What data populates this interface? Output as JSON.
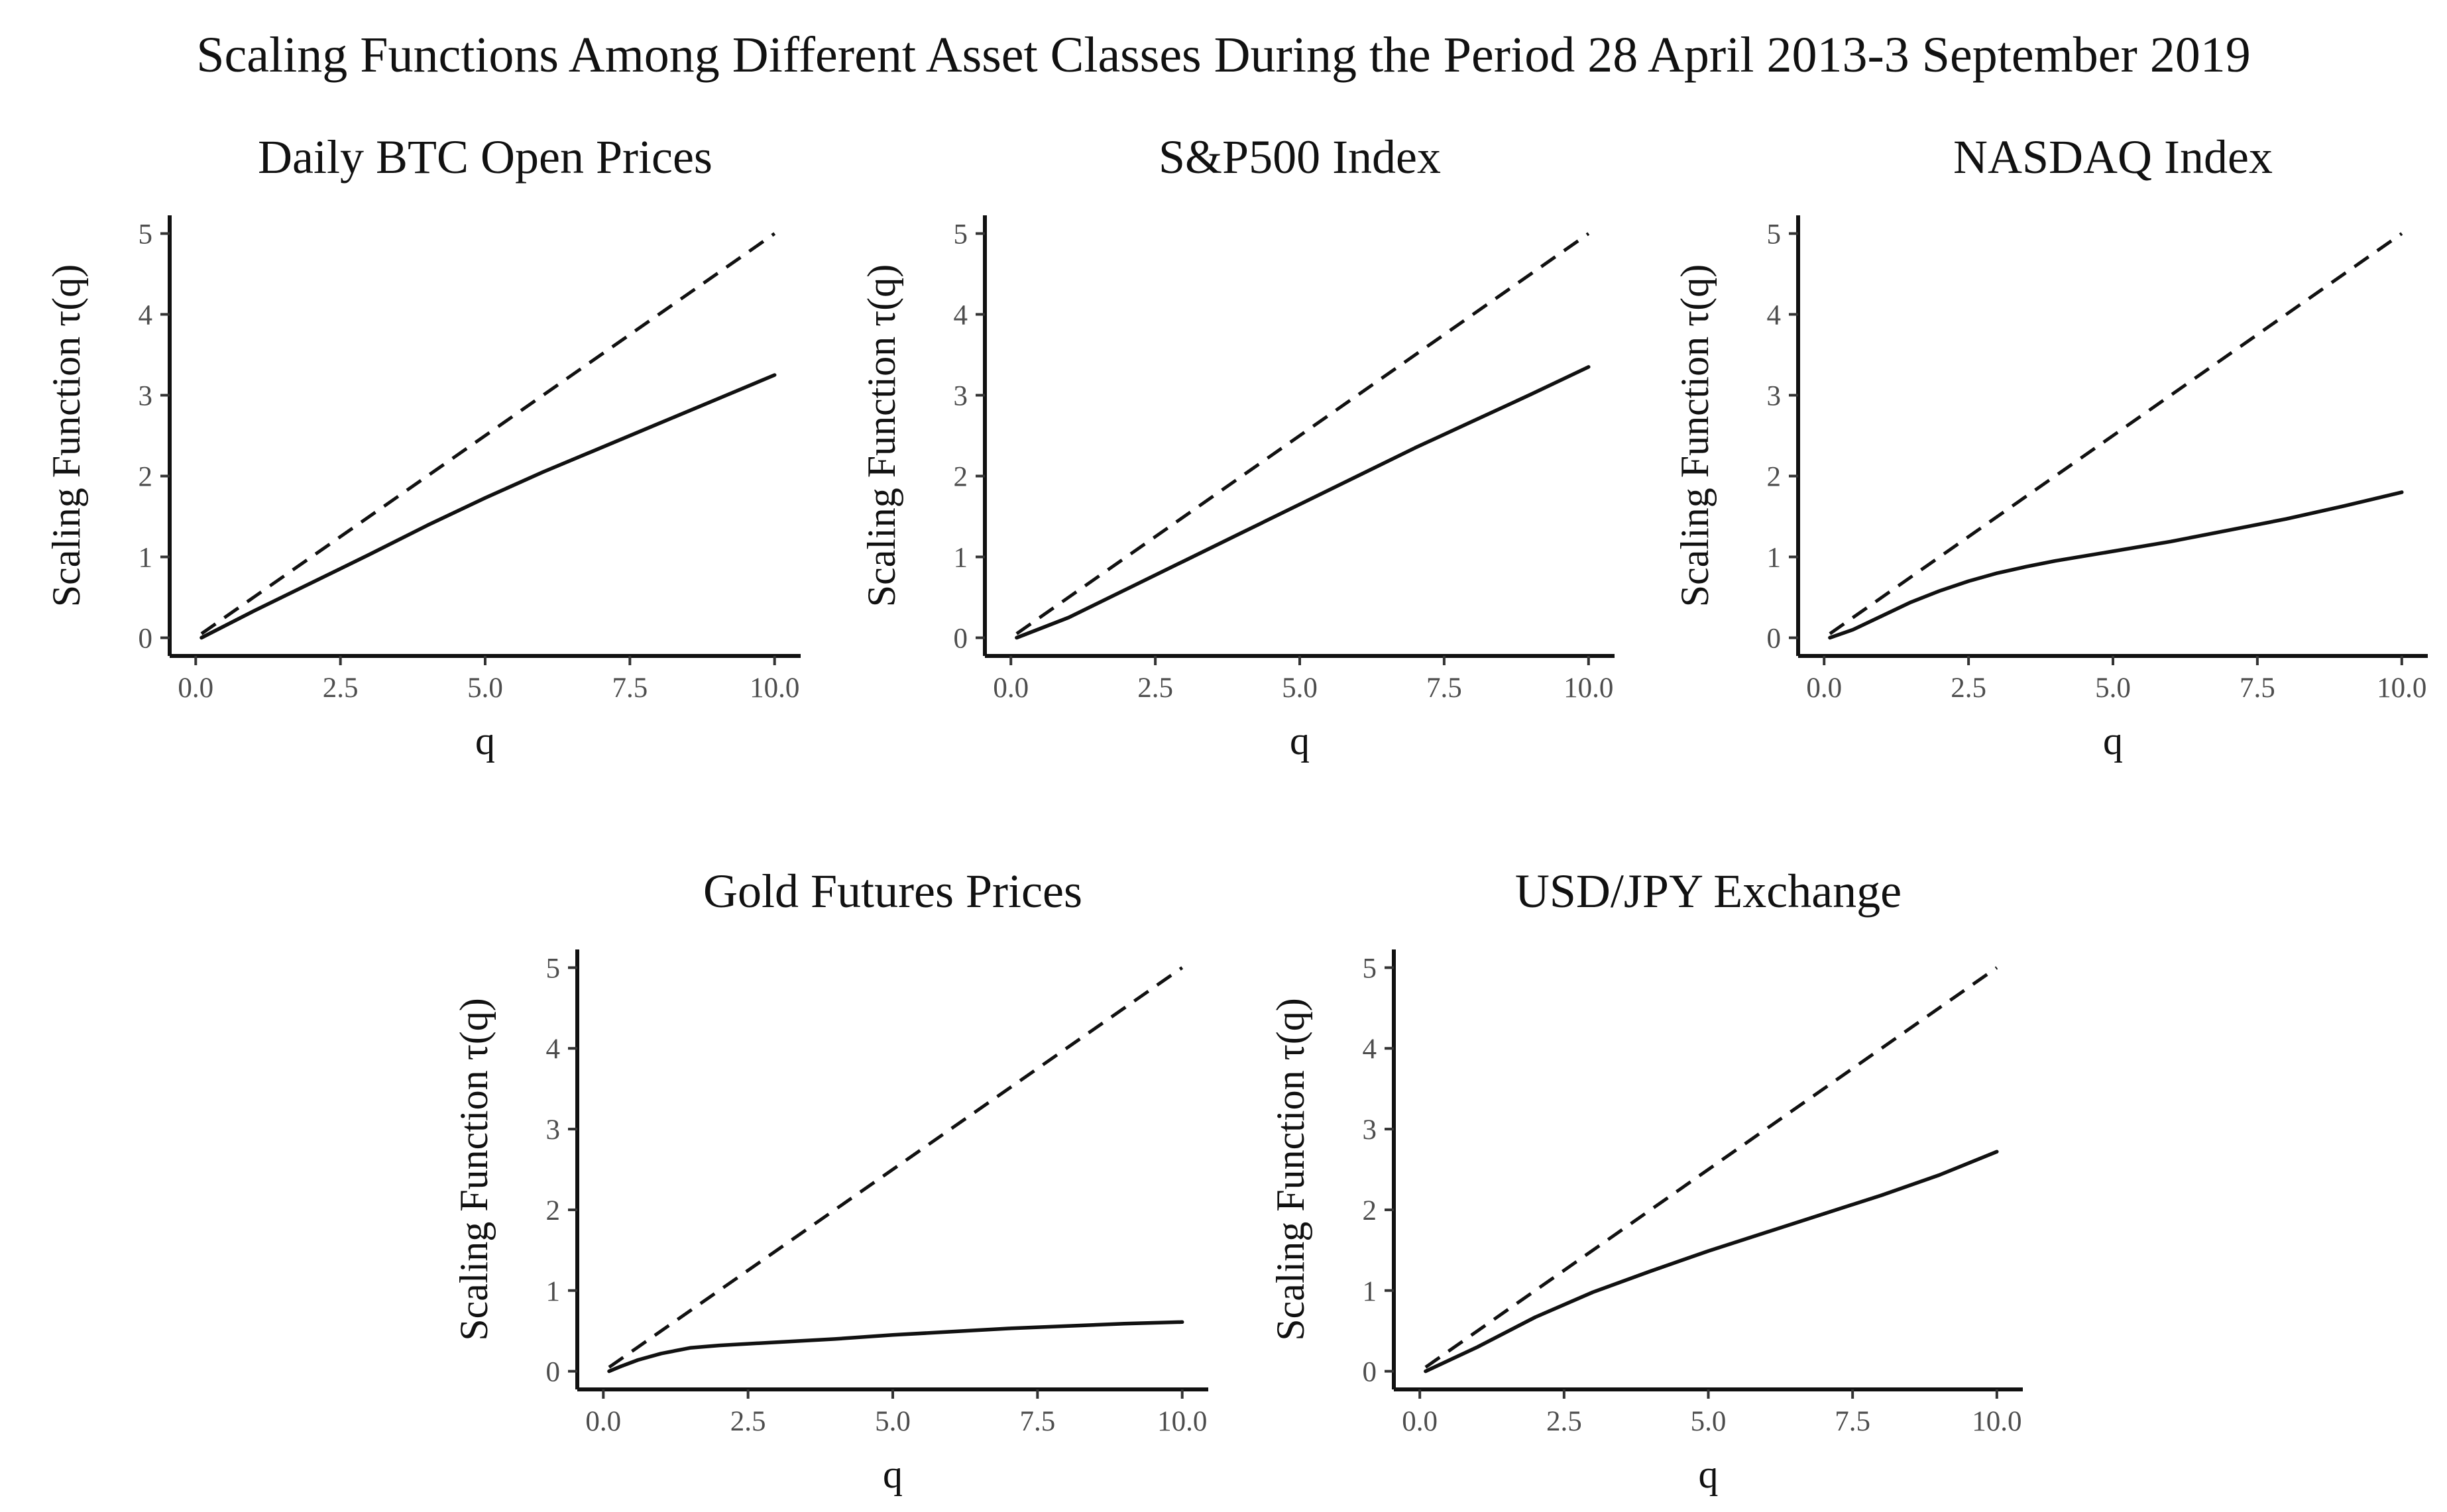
{
  "title": "Scaling Functions Among Different Asset Classes During the Period 28 April 2013-3 September 2019",
  "chart_data": [
    {
      "type": "line",
      "title": "Daily BTC Open Prices",
      "xlabel": "q",
      "ylabel": "Scaling Function τ(q)",
      "xlim": [
        0,
        10
      ],
      "ylim": [
        0,
        5
      ],
      "xticks": [
        "0.0",
        "2.5",
        "5.0",
        "7.5",
        "10.0"
      ],
      "yticks": [
        "0",
        "1",
        "2",
        "3",
        "4",
        "5"
      ],
      "grid": false,
      "series": [
        {
          "style": "solid",
          "x": [
            0.1,
            1,
            2,
            3,
            4,
            5,
            6,
            7,
            8,
            9,
            10
          ],
          "y": [
            0.0,
            0.33,
            0.68,
            1.03,
            1.39,
            1.73,
            2.05,
            2.35,
            2.65,
            2.95,
            3.25
          ]
        },
        {
          "style": "dashed",
          "x": [
            0.1,
            10
          ],
          "y": [
            0.05,
            5.0
          ]
        }
      ]
    },
    {
      "type": "line",
      "title": "S&P500 Index",
      "xlabel": "q",
      "ylabel": "Scaling Function τ(q)",
      "xlim": [
        0,
        10
      ],
      "ylim": [
        0,
        5
      ],
      "xticks": [
        "0.0",
        "2.5",
        "5.0",
        "7.5",
        "10.0"
      ],
      "yticks": [
        "0",
        "1",
        "2",
        "3",
        "4",
        "5"
      ],
      "grid": false,
      "series": [
        {
          "style": "solid",
          "x": [
            0.1,
            1,
            2,
            3,
            4,
            5,
            6,
            7,
            8,
            9,
            10
          ],
          "y": [
            0.0,
            0.25,
            0.6,
            0.95,
            1.3,
            1.65,
            2.0,
            2.35,
            2.68,
            3.01,
            3.35
          ]
        },
        {
          "style": "dashed",
          "x": [
            0.1,
            10
          ],
          "y": [
            0.05,
            5.0
          ]
        }
      ]
    },
    {
      "type": "line",
      "title": "NASDAQ Index",
      "xlabel": "q",
      "ylabel": "Scaling Function τ(q)",
      "xlim": [
        0,
        10
      ],
      "ylim": [
        0,
        5
      ],
      "xticks": [
        "0.0",
        "2.5",
        "5.0",
        "7.5",
        "10.0"
      ],
      "yticks": [
        "0",
        "1",
        "2",
        "3",
        "4",
        "5"
      ],
      "grid": false,
      "series": [
        {
          "style": "solid",
          "x": [
            0.1,
            0.5,
            1,
            1.5,
            2,
            2.5,
            3,
            3.5,
            4,
            5,
            6,
            7,
            8,
            9,
            10
          ],
          "y": [
            0.0,
            0.1,
            0.27,
            0.44,
            0.58,
            0.7,
            0.8,
            0.88,
            0.95,
            1.07,
            1.19,
            1.33,
            1.47,
            1.63,
            1.8
          ]
        },
        {
          "style": "dashed",
          "x": [
            0.1,
            10
          ],
          "y": [
            0.05,
            5.0
          ]
        }
      ]
    },
    {
      "type": "line",
      "title": "Gold Futures Prices",
      "xlabel": "q",
      "ylabel": "Scaling Function τ(q)",
      "xlim": [
        0,
        10
      ],
      "ylim": [
        0,
        5
      ],
      "xticks": [
        "0.0",
        "2.5",
        "5.0",
        "7.5",
        "10.0"
      ],
      "yticks": [
        "0",
        "1",
        "2",
        "3",
        "4",
        "5"
      ],
      "grid": false,
      "series": [
        {
          "style": "solid",
          "x": [
            0.1,
            0.3,
            0.6,
            1,
            1.5,
            2,
            3,
            4,
            5,
            6,
            7,
            8,
            9,
            10
          ],
          "y": [
            0.0,
            0.06,
            0.14,
            0.22,
            0.29,
            0.32,
            0.36,
            0.4,
            0.45,
            0.49,
            0.53,
            0.56,
            0.59,
            0.61
          ]
        },
        {
          "style": "dashed",
          "x": [
            0.1,
            10
          ],
          "y": [
            0.05,
            5.0
          ]
        }
      ]
    },
    {
      "type": "line",
      "title": "USD/JPY Exchange",
      "xlabel": "q",
      "ylabel": "Scaling Function τ(q)",
      "xlim": [
        0,
        10
      ],
      "ylim": [
        0,
        5
      ],
      "xticks": [
        "0.0",
        "2.5",
        "5.0",
        "7.5",
        "10.0"
      ],
      "yticks": [
        "0",
        "1",
        "2",
        "3",
        "4",
        "5"
      ],
      "grid": false,
      "series": [
        {
          "style": "solid",
          "x": [
            0.1,
            1,
            2,
            3,
            4,
            5,
            6,
            7,
            8,
            9,
            10
          ],
          "y": [
            0.0,
            0.3,
            0.67,
            0.98,
            1.24,
            1.49,
            1.72,
            1.95,
            2.18,
            2.43,
            2.72
          ]
        },
        {
          "style": "dashed",
          "x": [
            0.1,
            10
          ],
          "y": [
            0.05,
            5.0
          ]
        }
      ]
    }
  ]
}
